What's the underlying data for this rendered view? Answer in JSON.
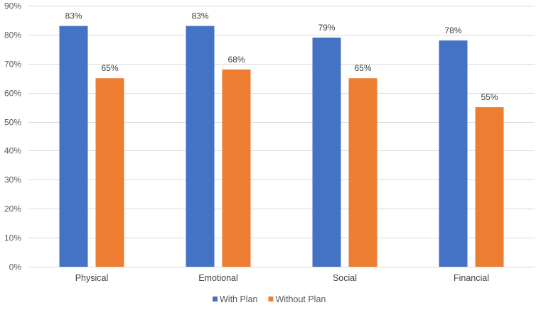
{
  "chart_data": {
    "type": "bar",
    "title": "",
    "xlabel": "",
    "ylabel": "",
    "categories": [
      "Physical",
      "Emotional",
      "Social",
      "Financial"
    ],
    "series": [
      {
        "name": "With Plan",
        "color": "#4472C4",
        "values": [
          83,
          83,
          79,
          78
        ],
        "labels": [
          "83%",
          "83%",
          "79%",
          "78%"
        ]
      },
      {
        "name": "Without Plan",
        "color": "#ED7D31",
        "values": [
          65,
          68,
          65,
          55
        ],
        "labels": [
          "65%",
          "68%",
          "65%",
          "55%"
        ]
      }
    ],
    "ylim": [
      0,
      90
    ],
    "yticks": [
      0,
      10,
      20,
      30,
      40,
      50,
      60,
      70,
      80,
      90
    ],
    "ytick_labels": [
      "0%",
      "10%",
      "20%",
      "30%",
      "40%",
      "50%",
      "60%",
      "70%",
      "80%",
      "90%"
    ],
    "grid": true,
    "legend_position": "bottom"
  }
}
